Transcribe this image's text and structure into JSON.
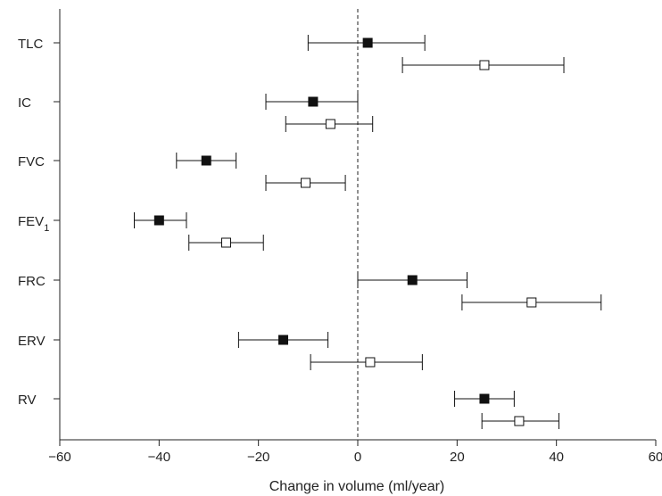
{
  "chart_data": {
    "type": "scatter",
    "title": "",
    "xlabel": "Change in volume (ml/year)",
    "ylabel": "",
    "xlim": [
      -60,
      60
    ],
    "x_ticks": [
      "−60",
      "−40",
      "−20",
      "0",
      "20",
      "40",
      "60"
    ],
    "x_tick_values": [
      -60,
      -40,
      -20,
      0,
      20,
      40,
      60
    ],
    "reference_line": 0,
    "categories": [
      {
        "label": "TLC",
        "sub": ""
      },
      {
        "label": "IC",
        "sub": ""
      },
      {
        "label": "FVC",
        "sub": ""
      },
      {
        "label": "FEV",
        "sub": "1"
      },
      {
        "label": "FRC",
        "sub": ""
      },
      {
        "label": "ERV",
        "sub": ""
      },
      {
        "label": "RV",
        "sub": ""
      }
    ],
    "series": [
      {
        "marker": "filled-square",
        "color": "#111111",
        "points": [
          {
            "estimate": 2,
            "low": -10,
            "high": 13.5
          },
          {
            "estimate": -9,
            "low": -18.5,
            "high": 0
          },
          {
            "estimate": -30.5,
            "low": -36.5,
            "high": -24.5
          },
          {
            "estimate": -40,
            "low": -45,
            "high": -34.5
          },
          {
            "estimate": 11,
            "low": 0,
            "high": 22
          },
          {
            "estimate": -15,
            "low": -24,
            "high": -6
          },
          {
            "estimate": 25.5,
            "low": 19.5,
            "high": 31.5
          }
        ]
      },
      {
        "marker": "open-square",
        "color": "#111111",
        "points": [
          {
            "estimate": 25.5,
            "low": 9,
            "high": 41.5
          },
          {
            "estimate": -5.5,
            "low": -14.5,
            "high": 3
          },
          {
            "estimate": -10.5,
            "low": -18.5,
            "high": -2.5
          },
          {
            "estimate": -26.5,
            "low": -34,
            "high": -19
          },
          {
            "estimate": 35,
            "low": 21,
            "high": 49
          },
          {
            "estimate": 2.5,
            "low": -9.5,
            "high": 13
          },
          {
            "estimate": 32.5,
            "low": 25,
            "high": 40.5
          }
        ]
      }
    ]
  }
}
